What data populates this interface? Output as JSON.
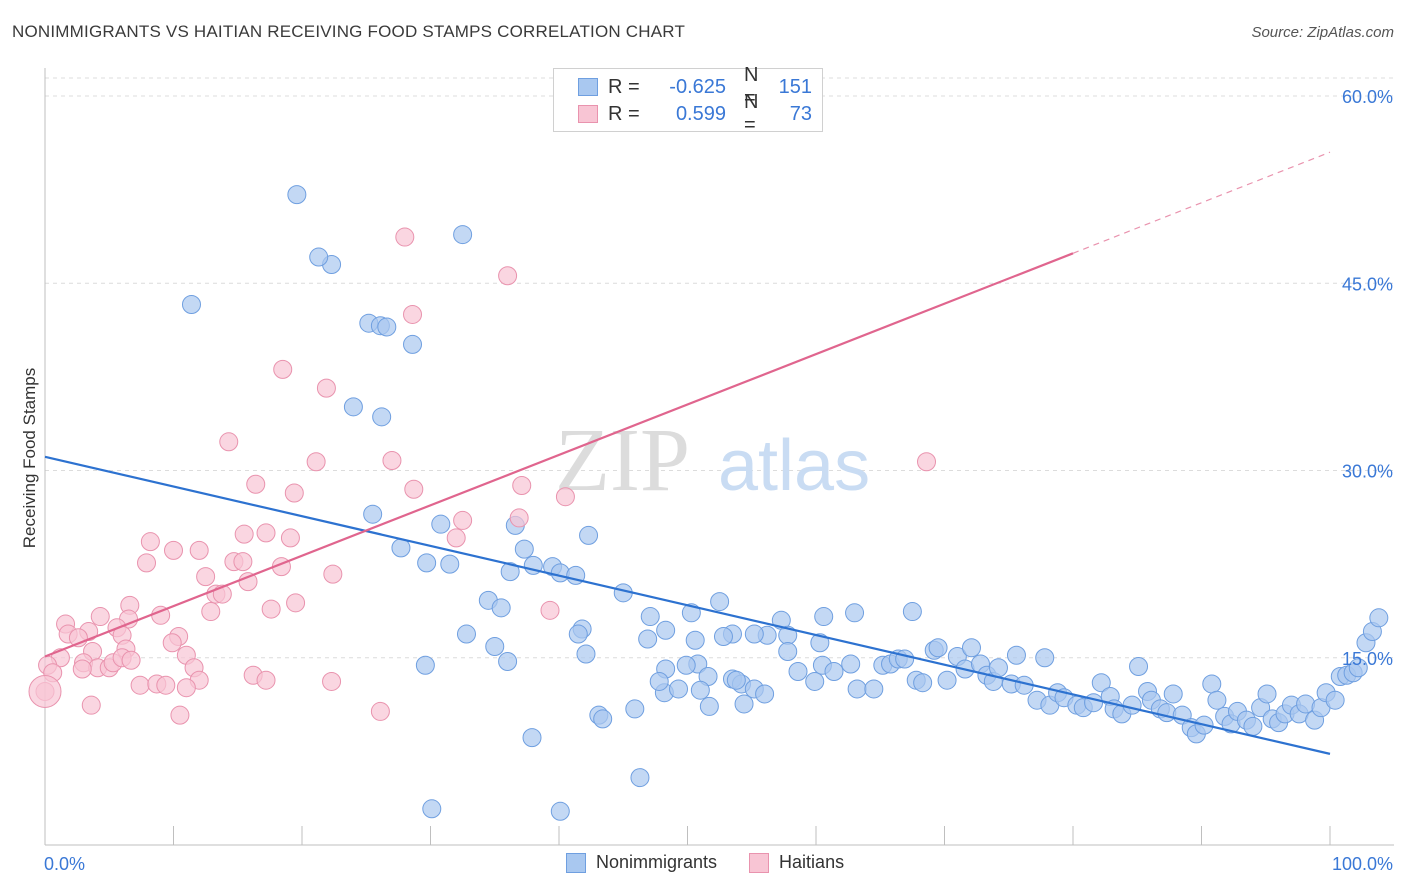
{
  "title": "NONIMMIGRANTS VS HAITIAN RECEIVING FOOD STAMPS CORRELATION CHART",
  "source": "Source: ZipAtlas.com",
  "watermark": {
    "zip": "ZIP",
    "atlas": "atlas"
  },
  "legend_top": [
    {
      "label": "R =",
      "r": "-0.625",
      "n_label": "N =",
      "n": "151",
      "color": "#a9c8f0",
      "border": "#6f9fe0"
    },
    {
      "label": "R =",
      "r": "0.599",
      "n_label": "N =",
      "n": "73",
      "color": "#f8c5d4",
      "border": "#e993ae"
    }
  ],
  "legend_bottom": [
    {
      "label": "Nonimmigrants",
      "color": "#a9c8f0",
      "border": "#6f9fe0"
    },
    {
      "label": "Haitians",
      "color": "#f8c5d4",
      "border": "#e993ae"
    }
  ],
  "chart_data": {
    "type": "scatter",
    "title": "NONIMMIGRANTS VS HAITIAN RECEIVING FOOD STAMPS CORRELATION CHART",
    "xlabel": "",
    "ylabel": "Receiving Food Stamps",
    "xlim": [
      0,
      100
    ],
    "ylim": [
      0,
      62
    ],
    "x_tick_labels": [
      "0.0%",
      "100.0%"
    ],
    "y_ticks": [
      15,
      30,
      45,
      60
    ],
    "y_tick_labels": [
      "15.0%",
      "30.0%",
      "45.0%",
      "60.0%"
    ],
    "grid": true,
    "legend": "top-center",
    "series": [
      {
        "name": "Nonimmigrants",
        "color": "#6f9fe0",
        "fill": "#a9c8f0",
        "trend": {
          "x0": 0,
          "y0": 31.1,
          "x1": 100,
          "y1": 7.3
        },
        "points": [
          [
            19.6,
            52.1
          ],
          [
            32.5,
            48.9
          ],
          [
            22.3,
            46.5
          ],
          [
            21.3,
            47.1
          ],
          [
            11.4,
            43.3
          ],
          [
            25.2,
            41.8
          ],
          [
            26.1,
            41.6
          ],
          [
            26.6,
            41.5
          ],
          [
            28.6,
            40.1
          ],
          [
            24.0,
            35.1
          ],
          [
            26.2,
            34.3
          ],
          [
            25.5,
            26.5
          ],
          [
            30.8,
            25.7
          ],
          [
            36.6,
            25.6
          ],
          [
            42.3,
            24.8
          ],
          [
            27.7,
            23.8
          ],
          [
            29.7,
            22.6
          ],
          [
            31.5,
            22.5
          ],
          [
            37.3,
            23.7
          ],
          [
            38.0,
            22.4
          ],
          [
            39.5,
            22.3
          ],
          [
            40.1,
            21.8
          ],
          [
            41.3,
            21.6
          ],
          [
            36.2,
            21.9
          ],
          [
            34.5,
            19.6
          ],
          [
            35.5,
            19.0
          ],
          [
            45.0,
            20.2
          ],
          [
            52.5,
            19.5
          ],
          [
            47.1,
            18.3
          ],
          [
            41.8,
            17.3
          ],
          [
            41.5,
            16.9
          ],
          [
            32.8,
            16.9
          ],
          [
            35.0,
            15.9
          ],
          [
            36.0,
            14.7
          ],
          [
            29.6,
            14.4
          ],
          [
            50.3,
            18.6
          ],
          [
            53.5,
            16.9
          ],
          [
            48.3,
            17.2
          ],
          [
            57.3,
            18.0
          ],
          [
            56.2,
            16.8
          ],
          [
            57.8,
            16.8
          ],
          [
            60.6,
            18.3
          ],
          [
            60.3,
            16.2
          ],
          [
            63.0,
            18.6
          ],
          [
            67.5,
            18.7
          ],
          [
            55.2,
            16.9
          ],
          [
            52.8,
            16.7
          ],
          [
            57.8,
            15.5
          ],
          [
            46.9,
            16.5
          ],
          [
            48.3,
            14.1
          ],
          [
            50.8,
            14.5
          ],
          [
            51.6,
            13.5
          ],
          [
            53.5,
            13.3
          ],
          [
            54.2,
            12.9
          ],
          [
            55.2,
            12.5
          ],
          [
            56.0,
            12.1
          ],
          [
            58.6,
            13.9
          ],
          [
            59.9,
            13.1
          ],
          [
            60.5,
            14.4
          ],
          [
            61.4,
            13.9
          ],
          [
            62.7,
            14.5
          ],
          [
            63.2,
            12.5
          ],
          [
            64.5,
            12.5
          ],
          [
            65.2,
            14.4
          ],
          [
            65.8,
            14.5
          ],
          [
            66.4,
            14.9
          ],
          [
            66.9,
            14.9
          ],
          [
            67.8,
            13.2
          ],
          [
            68.3,
            13.0
          ],
          [
            69.2,
            15.6
          ],
          [
            69.5,
            15.8
          ],
          [
            70.2,
            13.2
          ],
          [
            71.0,
            15.1
          ],
          [
            71.6,
            14.1
          ],
          [
            72.1,
            15.8
          ],
          [
            72.8,
            14.5
          ],
          [
            73.3,
            13.6
          ],
          [
            73.8,
            13.1
          ],
          [
            74.2,
            14.2
          ],
          [
            75.2,
            12.9
          ],
          [
            75.6,
            15.2
          ],
          [
            76.2,
            12.8
          ],
          [
            77.2,
            11.6
          ],
          [
            77.8,
            15.0
          ],
          [
            78.2,
            11.2
          ],
          [
            78.8,
            12.2
          ],
          [
            79.3,
            11.8
          ],
          [
            80.3,
            11.2
          ],
          [
            80.8,
            11.0
          ],
          [
            81.6,
            11.4
          ],
          [
            82.2,
            13.0
          ],
          [
            82.9,
            11.9
          ],
          [
            83.2,
            10.9
          ],
          [
            83.8,
            10.5
          ],
          [
            84.6,
            11.2
          ],
          [
            85.1,
            14.3
          ],
          [
            85.8,
            12.3
          ],
          [
            86.1,
            11.6
          ],
          [
            86.8,
            10.9
          ],
          [
            87.3,
            10.6
          ],
          [
            87.8,
            12.1
          ],
          [
            88.5,
            10.4
          ],
          [
            89.2,
            9.4
          ],
          [
            89.6,
            8.9
          ],
          [
            90.2,
            9.6
          ],
          [
            90.8,
            12.9
          ],
          [
            91.2,
            11.6
          ],
          [
            91.8,
            10.3
          ],
          [
            92.3,
            9.7
          ],
          [
            92.8,
            10.7
          ],
          [
            93.5,
            10.0
          ],
          [
            94.0,
            9.5
          ],
          [
            94.6,
            11.0
          ],
          [
            95.1,
            12.1
          ],
          [
            95.5,
            10.1
          ],
          [
            96.0,
            9.8
          ],
          [
            96.5,
            10.5
          ],
          [
            97.0,
            11.2
          ],
          [
            97.6,
            10.5
          ],
          [
            98.1,
            11.3
          ],
          [
            98.8,
            10.0
          ],
          [
            99.3,
            11.0
          ],
          [
            99.7,
            12.2
          ],
          [
            100.4,
            11.6
          ],
          [
            100.8,
            13.5
          ],
          [
            101.3,
            13.6
          ],
          [
            101.8,
            13.8
          ],
          [
            102.2,
            14.2
          ],
          [
            102.8,
            16.2
          ],
          [
            103.3,
            17.1
          ],
          [
            103.8,
            18.2
          ],
          [
            42.1,
            15.3
          ],
          [
            43.1,
            10.4
          ],
          [
            43.4,
            10.1
          ],
          [
            45.9,
            10.9
          ],
          [
            48.2,
            12.2
          ],
          [
            49.3,
            12.5
          ],
          [
            51.0,
            12.4
          ],
          [
            53.8,
            13.2
          ],
          [
            51.7,
            11.1
          ],
          [
            47.8,
            13.1
          ],
          [
            49.9,
            14.4
          ],
          [
            50.6,
            16.4
          ],
          [
            54.4,
            11.3
          ],
          [
            37.9,
            8.6
          ],
          [
            46.3,
            5.4
          ],
          [
            30.1,
            2.9
          ],
          [
            40.1,
            2.7
          ]
        ]
      },
      {
        "name": "Haitians",
        "color": "#e993ae",
        "fill": "#f8c5d4",
        "trend": {
          "x0": 0,
          "y0": 15.1,
          "x1": 80,
          "y1": 47.4,
          "dash_x1": 100,
          "dash_y1": 55.5
        },
        "points": [
          [
            28.0,
            48.7
          ],
          [
            36.0,
            45.6
          ],
          [
            28.6,
            42.5
          ],
          [
            18.5,
            38.1
          ],
          [
            21.9,
            36.6
          ],
          [
            14.3,
            32.3
          ],
          [
            21.1,
            30.7
          ],
          [
            27.0,
            30.8
          ],
          [
            68.6,
            30.7
          ],
          [
            16.4,
            28.9
          ],
          [
            19.4,
            28.2
          ],
          [
            28.7,
            28.5
          ],
          [
            37.1,
            28.8
          ],
          [
            40.5,
            27.9
          ],
          [
            32.5,
            26.0
          ],
          [
            36.9,
            26.2
          ],
          [
            8.2,
            24.3
          ],
          [
            10.0,
            23.6
          ],
          [
            12.0,
            23.6
          ],
          [
            15.5,
            24.9
          ],
          [
            17.2,
            25.0
          ],
          [
            19.1,
            24.6
          ],
          [
            32.0,
            24.6
          ],
          [
            7.9,
            22.6
          ],
          [
            14.7,
            22.7
          ],
          [
            15.4,
            22.7
          ],
          [
            18.4,
            22.3
          ],
          [
            22.4,
            21.7
          ],
          [
            12.5,
            21.5
          ],
          [
            13.3,
            20.1
          ],
          [
            13.8,
            20.1
          ],
          [
            15.8,
            21.1
          ],
          [
            19.5,
            19.4
          ],
          [
            6.6,
            19.2
          ],
          [
            9.0,
            18.4
          ],
          [
            12.9,
            18.7
          ],
          [
            17.6,
            18.9
          ],
          [
            39.3,
            18.8
          ],
          [
            4.3,
            18.3
          ],
          [
            6.5,
            18.1
          ],
          [
            1.6,
            17.7
          ],
          [
            1.8,
            16.9
          ],
          [
            3.4,
            17.1
          ],
          [
            5.6,
            17.4
          ],
          [
            10.4,
            16.7
          ],
          [
            2.6,
            16.6
          ],
          [
            6.0,
            16.8
          ],
          [
            9.9,
            16.2
          ],
          [
            6.3,
            15.7
          ],
          [
            3.7,
            15.5
          ],
          [
            1.2,
            15.0
          ],
          [
            3.0,
            14.6
          ],
          [
            0.2,
            14.4
          ],
          [
            4.1,
            14.2
          ],
          [
            5.0,
            14.2
          ],
          [
            5.3,
            14.6
          ],
          [
            6.0,
            15.0
          ],
          [
            6.7,
            14.8
          ],
          [
            11.0,
            15.2
          ],
          [
            11.6,
            14.2
          ],
          [
            0.6,
            13.8
          ],
          [
            2.9,
            14.1
          ],
          [
            16.2,
            13.6
          ],
          [
            17.2,
            13.2
          ],
          [
            12.0,
            13.2
          ],
          [
            7.4,
            12.8
          ],
          [
            8.7,
            12.9
          ],
          [
            9.4,
            12.8
          ],
          [
            11.0,
            12.6
          ],
          [
            22.3,
            13.1
          ],
          [
            3.6,
            11.2
          ],
          [
            10.5,
            10.4
          ],
          [
            26.1,
            10.7
          ],
          [
            0.0,
            12.3
          ]
        ]
      }
    ]
  }
}
